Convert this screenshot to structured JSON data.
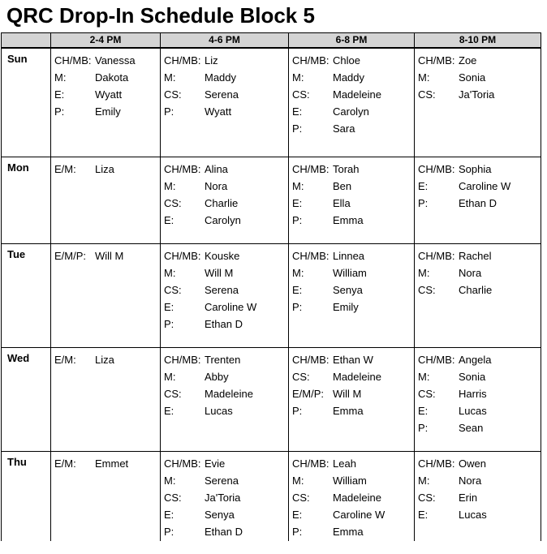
{
  "title": "QRC Drop-In Schedule Block 5",
  "schedule": {
    "time_headers": [
      "2-4 PM",
      "4-6 PM",
      "6-8 PM",
      "8-10 PM"
    ],
    "rows": [
      {
        "day": "Sun",
        "cells": [
          {
            "entries": [
              [
                "CH/MB:",
                "Vanessa"
              ],
              [
                "M:",
                "Dakota"
              ],
              [
                "E:",
                "Wyatt"
              ],
              [
                "P:",
                "Emily"
              ]
            ]
          },
          {
            "entries": [
              [
                "CH/MB:",
                "Liz"
              ],
              [
                "M:",
                "Maddy"
              ],
              [
                "CS:",
                "Serena"
              ],
              [
                "P:",
                "Wyatt"
              ]
            ]
          },
          {
            "entries": [
              [
                "CH/MB:",
                "Chloe"
              ],
              [
                "M:",
                "Maddy"
              ],
              [
                "CS:",
                "Madeleine"
              ],
              [
                "E:",
                "Carolyn"
              ],
              [
                "P:",
                "Sara"
              ]
            ]
          },
          {
            "entries": [
              [
                "CH/MB:",
                "Zoe"
              ],
              [
                "M:",
                "Sonia"
              ],
              [
                "CS:",
                "Ja'Toria"
              ]
            ]
          }
        ]
      },
      {
        "day": "Mon",
        "cells": [
          {
            "entries": [
              [
                "E/M:",
                "Liza"
              ]
            ]
          },
          {
            "entries": [
              [
                "CH/MB:",
                "Alina"
              ],
              [
                "M:",
                "Nora"
              ],
              [
                "CS:",
                "Charlie"
              ],
              [
                "E:",
                "Carolyn"
              ]
            ]
          },
          {
            "entries": [
              [
                "CH/MB:",
                "Torah"
              ],
              [
                "M:",
                "Ben"
              ],
              [
                "E:",
                "Ella"
              ],
              [
                "P:",
                "Emma"
              ]
            ]
          },
          {
            "entries": [
              [
                "CH/MB:",
                "Sophia"
              ],
              [
                "E:",
                "Caroline W"
              ],
              [
                "P:",
                "Ethan D"
              ]
            ]
          }
        ]
      },
      {
        "day": "Tue",
        "cells": [
          {
            "entries": [
              [
                "E/M/P:",
                "Will M"
              ]
            ]
          },
          {
            "entries": [
              [
                "CH/MB:",
                "Kouske"
              ],
              [
                "M:",
                "Will M"
              ],
              [
                "CS:",
                "Serena"
              ],
              [
                "E:",
                "Caroline W"
              ],
              [
                "P:",
                "Ethan D"
              ]
            ]
          },
          {
            "entries": [
              [
                "CH/MB:",
                "Linnea"
              ],
              [
                "M:",
                "William"
              ],
              [
                "E:",
                "Senya"
              ],
              [
                "P:",
                "Emily"
              ]
            ]
          },
          {
            "entries": [
              [
                "CH/MB:",
                "Rachel"
              ],
              [
                "M:",
                "Nora"
              ],
              [
                "CS:",
                "Charlie"
              ]
            ]
          }
        ]
      },
      {
        "day": "Wed",
        "cells": [
          {
            "entries": [
              [
                "E/M:",
                "Liza"
              ]
            ]
          },
          {
            "entries": [
              [
                "CH/MB:",
                "Trenten"
              ],
              [
                "M:",
                "Abby"
              ],
              [
                "CS:",
                "Madeleine"
              ],
              [
                "E:",
                "Lucas"
              ]
            ]
          },
          {
            "entries": [
              [
                "CH/MB:",
                "Ethan W"
              ],
              [
                "CS:",
                "Madeleine"
              ],
              [
                "E/M/P:",
                "Will M"
              ],
              [
                "P:",
                "Emma"
              ]
            ]
          },
          {
            "entries": [
              [
                "CH/MB:",
                "Angela"
              ],
              [
                "M:",
                "Sonia"
              ],
              [
                "CS:",
                "Harris"
              ],
              [
                "E:",
                "Lucas"
              ],
              [
                "P:",
                "Sean"
              ]
            ]
          }
        ]
      },
      {
        "day": "Thu",
        "cells": [
          {
            "entries": [
              [
                "E/M:",
                "Emmet"
              ]
            ]
          },
          {
            "entries": [
              [
                "CH/MB:",
                "Evie"
              ],
              [
                "M:",
                "Serena"
              ],
              [
                "CS:",
                "Ja'Toria"
              ],
              [
                "E:",
                "Senya"
              ],
              [
                "P:",
                "Ethan D"
              ]
            ]
          },
          {
            "entries": [
              [
                "CH/MB:",
                "Leah"
              ],
              [
                "M:",
                "William"
              ],
              [
                "CS:",
                "Madeleine"
              ],
              [
                "E:",
                "Caroline W"
              ],
              [
                "P:",
                "Emma"
              ]
            ]
          },
          {
            "entries": [
              [
                "CH/MB:",
                "Owen"
              ],
              [
                "M:",
                "Nora"
              ],
              [
                "CS:",
                "Erin"
              ],
              [
                "E:",
                "Lucas"
              ]
            ]
          }
        ]
      }
    ]
  },
  "colors": {
    "header_fill": "#D4D4D4",
    "border": "#000000",
    "text": "#000000",
    "background": "#FFFFFF"
  }
}
